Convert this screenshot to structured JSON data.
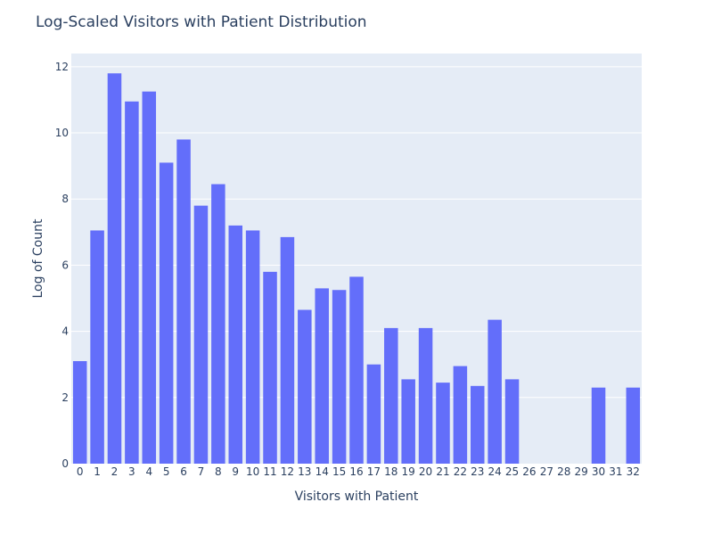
{
  "chart_data": {
    "type": "bar",
    "title": "Log-Scaled Visitors with Patient Distribution",
    "xlabel": "Visitors with Patient",
    "ylabel": "Log of Count",
    "categories": [
      "0",
      "1",
      "2",
      "3",
      "4",
      "5",
      "6",
      "7",
      "8",
      "9",
      "10",
      "11",
      "12",
      "13",
      "14",
      "15",
      "16",
      "17",
      "18",
      "19",
      "20",
      "21",
      "22",
      "23",
      "24",
      "25",
      "26",
      "27",
      "28",
      "29",
      "30",
      "31",
      "32"
    ],
    "values": [
      3.1,
      7.05,
      11.8,
      10.95,
      11.25,
      9.1,
      9.8,
      7.8,
      8.45,
      7.2,
      7.05,
      5.8,
      6.85,
      4.65,
      5.3,
      5.25,
      5.65,
      3.0,
      4.1,
      2.55,
      4.1,
      2.45,
      2.95,
      2.35,
      4.35,
      2.55,
      0,
      0,
      0,
      0,
      2.3,
      0,
      2.3
    ],
    "ylim": [
      0,
      12.4
    ],
    "yticks": [
      0,
      2,
      4,
      6,
      8,
      10,
      12
    ],
    "grid": true,
    "bar_color": "#636efa",
    "plot_bg": "#e5ecf6"
  }
}
